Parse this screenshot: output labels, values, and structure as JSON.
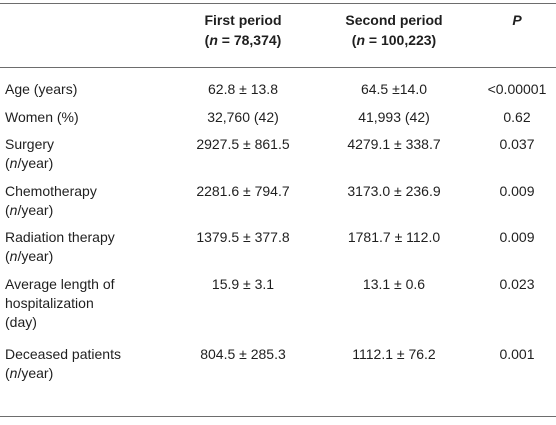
{
  "table": {
    "headers": {
      "first_title": "First period",
      "first_n_prefix": "(",
      "first_n_var": "n",
      "first_n_rest": " = 78,374)",
      "second_title": "Second period",
      "second_n_prefix": "(",
      "second_n_var": "n",
      "second_n_rest": " = 100,223)",
      "p": "P"
    },
    "rows": [
      {
        "label": "Age (years)",
        "unit_var": "",
        "unit_rest": "",
        "first": "62.8 ± 13.8",
        "second": "64.5 ±14.0",
        "p": "<0.00001"
      },
      {
        "label": "Women (%)",
        "unit_var": "",
        "unit_rest": "",
        "first": "32,760 (42)",
        "second": "41,993 (42)",
        "p": "0.62"
      },
      {
        "label": "Surgery",
        "unit_var": "n",
        "unit_rest": "/year)",
        "first": "2927.5 ± 861.5",
        "second": "4279.1 ± 338.7",
        "p": "0.037"
      },
      {
        "label": "Chemotherapy",
        "unit_var": "n",
        "unit_rest": "/year)",
        "first": "2281.6 ± 794.7",
        "second": "3173.0 ± 236.9",
        "p": "0.009"
      },
      {
        "label": "Radiation therapy",
        "unit_var": "n",
        "unit_rest": "/year)",
        "first": "1379.5 ± 377.8",
        "second": "1781.7 ± 112.0",
        "p": "0.009"
      },
      {
        "label_line1": "Average length of",
        "label_line2": "hospitalization",
        "label_line3": "(day)",
        "first": "15.9 ± 3.1",
        "second": "13.1 ± 0.6",
        "p": "0.023"
      },
      {
        "label": "Deceased patients",
        "unit_var": "n",
        "unit_rest": "/year)",
        "first": "804.5 ± 285.3",
        "second": "1112.1 ± 76.2",
        "p": "0.001"
      }
    ]
  }
}
